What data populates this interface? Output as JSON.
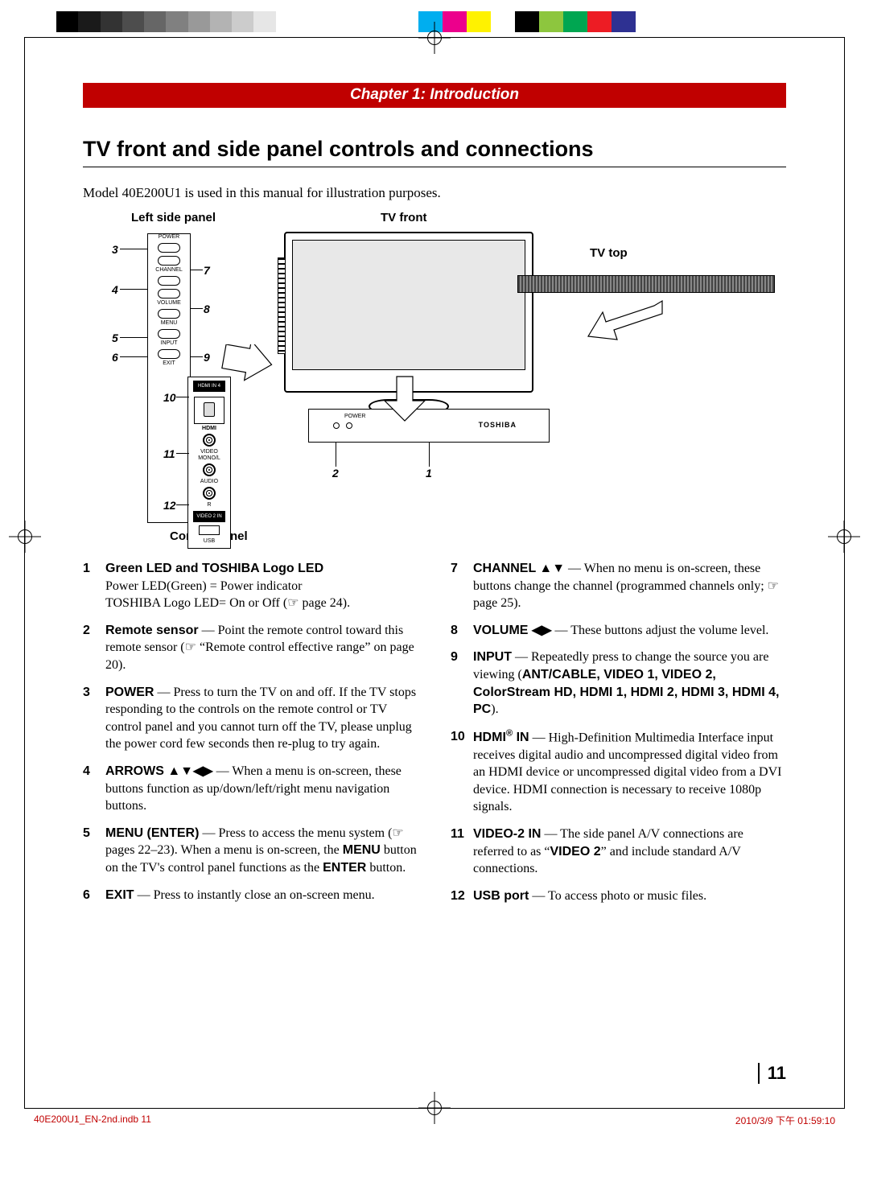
{
  "reg_colors_left": [
    "#000000",
    "#1a1a1a",
    "#333333",
    "#4d4d4d",
    "#666666",
    "#808080",
    "#999999",
    "#b3b3b3",
    "#cccccc",
    "#e6e6e6",
    "#ffffff"
  ],
  "reg_colors_right": [
    "#00aeef",
    "#ec008c",
    "#fff200",
    "#00000000",
    "#000000",
    "#8dc63e",
    "#00a651",
    "#ed1c24",
    "#2e3192",
    "#ffffff"
  ],
  "chapter": "Chapter 1: Introduction",
  "section_title": "TV front and side panel controls and connections",
  "intro": "Model 40E200U1 is used in this manual for illustration purposes.",
  "labels": {
    "left_side_panel": "Left side panel",
    "tv_front": "TV front",
    "tv_top": "TV top",
    "control_panel": "Control panel"
  },
  "panel_buttons": {
    "power": "POWER",
    "channel": "CHANNEL",
    "volume": "VOLUME",
    "menu": "MENU",
    "input": "INPUT",
    "exit": "EXIT",
    "hdmi4": "HDMI IN 4",
    "hdmi_logo": "HDMI",
    "video": "VIDEO",
    "mono": "MONO/L",
    "audio": "AUDIO",
    "r": "R",
    "video2": "VIDEO 2 IN",
    "usb": "USB"
  },
  "front_panel": {
    "power_lbl": "POWER",
    "brand": "TOSHIBA"
  },
  "callouts": {
    "c1": "1",
    "c2": "2",
    "c3": "3",
    "c4": "4",
    "c5": "5",
    "c6": "6",
    "c7": "7",
    "c8": "8",
    "c9": "9",
    "c10": "10",
    "c11": "11",
    "c12": "12"
  },
  "defs_left": [
    {
      "n": "1",
      "term": "Green LED and TOSHIBA Logo LED",
      "body_html": "<br>Power LED(Green) = Power indicator<br>TOSHIBA Logo LED= On or Off (☞ page 24)."
    },
    {
      "n": "2",
      "term": "Remote sensor",
      "body_html": " — Point the remote control toward this remote sensor (☞ “Remote control effective range” on page 20)."
    },
    {
      "n": "3",
      "term": "POWER",
      "body_html": " — Press to turn the TV on and off. If the TV stops responding to the controls on the remote control or TV control panel and you cannot turn off the TV, please unplug the power cord few seconds then re-plug to try again."
    },
    {
      "n": "4",
      "term": "ARROWS ▲▼◀▶",
      "body_html": " — When a menu is on-screen, these buttons function as up/down/left/right menu navigation buttons."
    },
    {
      "n": "5",
      "term": "MENU (ENTER)",
      "body_html": " — Press to access the menu system (☞ pages 22–23). When a menu is on-screen, the <span class=\"boldspan\">MENU</span> button on the TV's control panel functions as the <span class=\"boldspan\">ENTER</span> button."
    },
    {
      "n": "6",
      "term": "EXIT",
      "body_html": " — Press to instantly close an on-screen menu."
    }
  ],
  "defs_right": [
    {
      "n": "7",
      "term": "CHANNEL ▲▼",
      "body_html": " — When no menu is on-screen, these buttons change the channel (programmed channels only; ☞ page 25)."
    },
    {
      "n": "8",
      "term": "VOLUME ◀▶",
      "body_html": " — These buttons adjust the volume level."
    },
    {
      "n": "9",
      "term": "INPUT",
      "body_html": " — Repeatedly press to change the source you are viewing (<span class=\"boldspan\">ANT/CABLE, VIDEO 1, VIDEO 2, ColorStream HD, HDMI 1, HDMI 2, HDMI 3, HDMI 4, PC</span>)."
    },
    {
      "n": "10",
      "term": "HDMI<span class=\"sup\">®</span> IN",
      "body_html": " — High-Definition Multimedia Interface input receives digital audio and uncompressed digital video from an HDMI device or uncompressed digital video from a DVI device. HDMI connection is necessary to receive 1080p signals."
    },
    {
      "n": "11",
      "term": "VIDEO-2 IN",
      "body_html": " — The side panel A/V connections are referred to as “<span class=\"boldspan\">VIDEO 2</span>” and include standard A/V connections."
    },
    {
      "n": "12",
      "term": "USB port",
      "body_html": " — To access photo or music files."
    }
  ],
  "page_number": "11",
  "footer": {
    "left": "40E200U1_EN-2nd.indb   11",
    "right": "2010/3/9   下午 01:59:10"
  }
}
